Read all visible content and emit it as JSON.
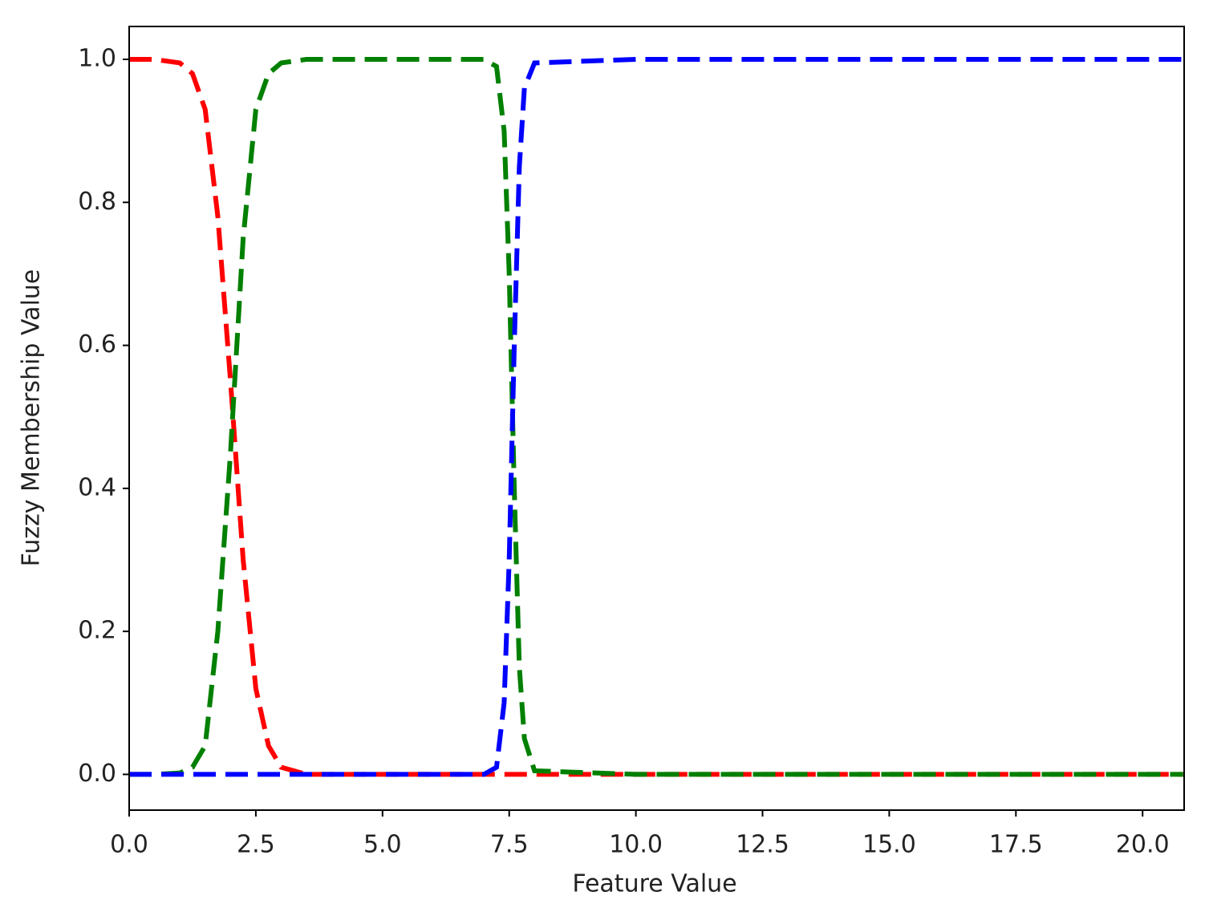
{
  "chart_data": {
    "type": "line",
    "x_label": "Feature Value",
    "y_label": "Fuzzy Membership Value",
    "x": [
      0,
      0.5,
      1.0,
      1.25,
      1.5,
      1.75,
      2.0,
      2.25,
      2.5,
      2.75,
      3.0,
      3.5,
      5.0,
      7.0,
      7.25,
      7.4,
      7.5,
      7.6,
      7.7,
      7.8,
      8.0,
      10.0,
      15.0,
      20.8
    ],
    "series": [
      {
        "color": "#ff0000",
        "values": [
          1,
          1,
          0.995,
          0.98,
          0.93,
          0.78,
          0.55,
          0.3,
          0.12,
          0.04,
          0.01,
          0,
          0,
          0,
          0,
          0,
          0,
          0,
          0,
          0,
          0,
          0,
          0,
          0
        ]
      },
      {
        "color": "#008000",
        "values": [
          0,
          0,
          0.002,
          0.01,
          0.04,
          0.2,
          0.45,
          0.75,
          0.93,
          0.98,
          0.995,
          1,
          1,
          1,
          0.99,
          0.9,
          0.7,
          0.4,
          0.15,
          0.05,
          0.005,
          0,
          0,
          0
        ]
      },
      {
        "color": "#0000ff",
        "values": [
          0,
          0,
          0,
          0,
          0,
          0,
          0,
          0,
          0,
          0,
          0,
          0,
          0,
          0,
          0.01,
          0.1,
          0.3,
          0.6,
          0.85,
          0.96,
          0.995,
          1,
          1,
          1
        ]
      }
    ],
    "xlim": [
      0,
      20.82
    ],
    "ylim": [
      -0.05,
      1.046
    ],
    "xticks": [
      {
        "value": 0,
        "label": "0.0"
      },
      {
        "value": 2.5,
        "label": "2.5"
      },
      {
        "value": 5,
        "label": "5.0"
      },
      {
        "value": 7.5,
        "label": "7.5"
      },
      {
        "value": 10,
        "label": "10.0"
      },
      {
        "value": 12.5,
        "label": "12.5"
      },
      {
        "value": 15,
        "label": "15.0"
      },
      {
        "value": 17.5,
        "label": "17.5"
      },
      {
        "value": 20,
        "label": "20.0"
      }
    ],
    "yticks": [
      {
        "value": 0,
        "label": "0.0"
      },
      {
        "value": 0.2,
        "label": "0.2"
      },
      {
        "value": 0.4,
        "label": "0.4"
      },
      {
        "value": 0.6,
        "label": "0.6"
      },
      {
        "value": 0.8,
        "label": "0.8"
      },
      {
        "value": 1,
        "label": "1.0"
      }
    ],
    "grid": false,
    "line_style": "dashed"
  }
}
